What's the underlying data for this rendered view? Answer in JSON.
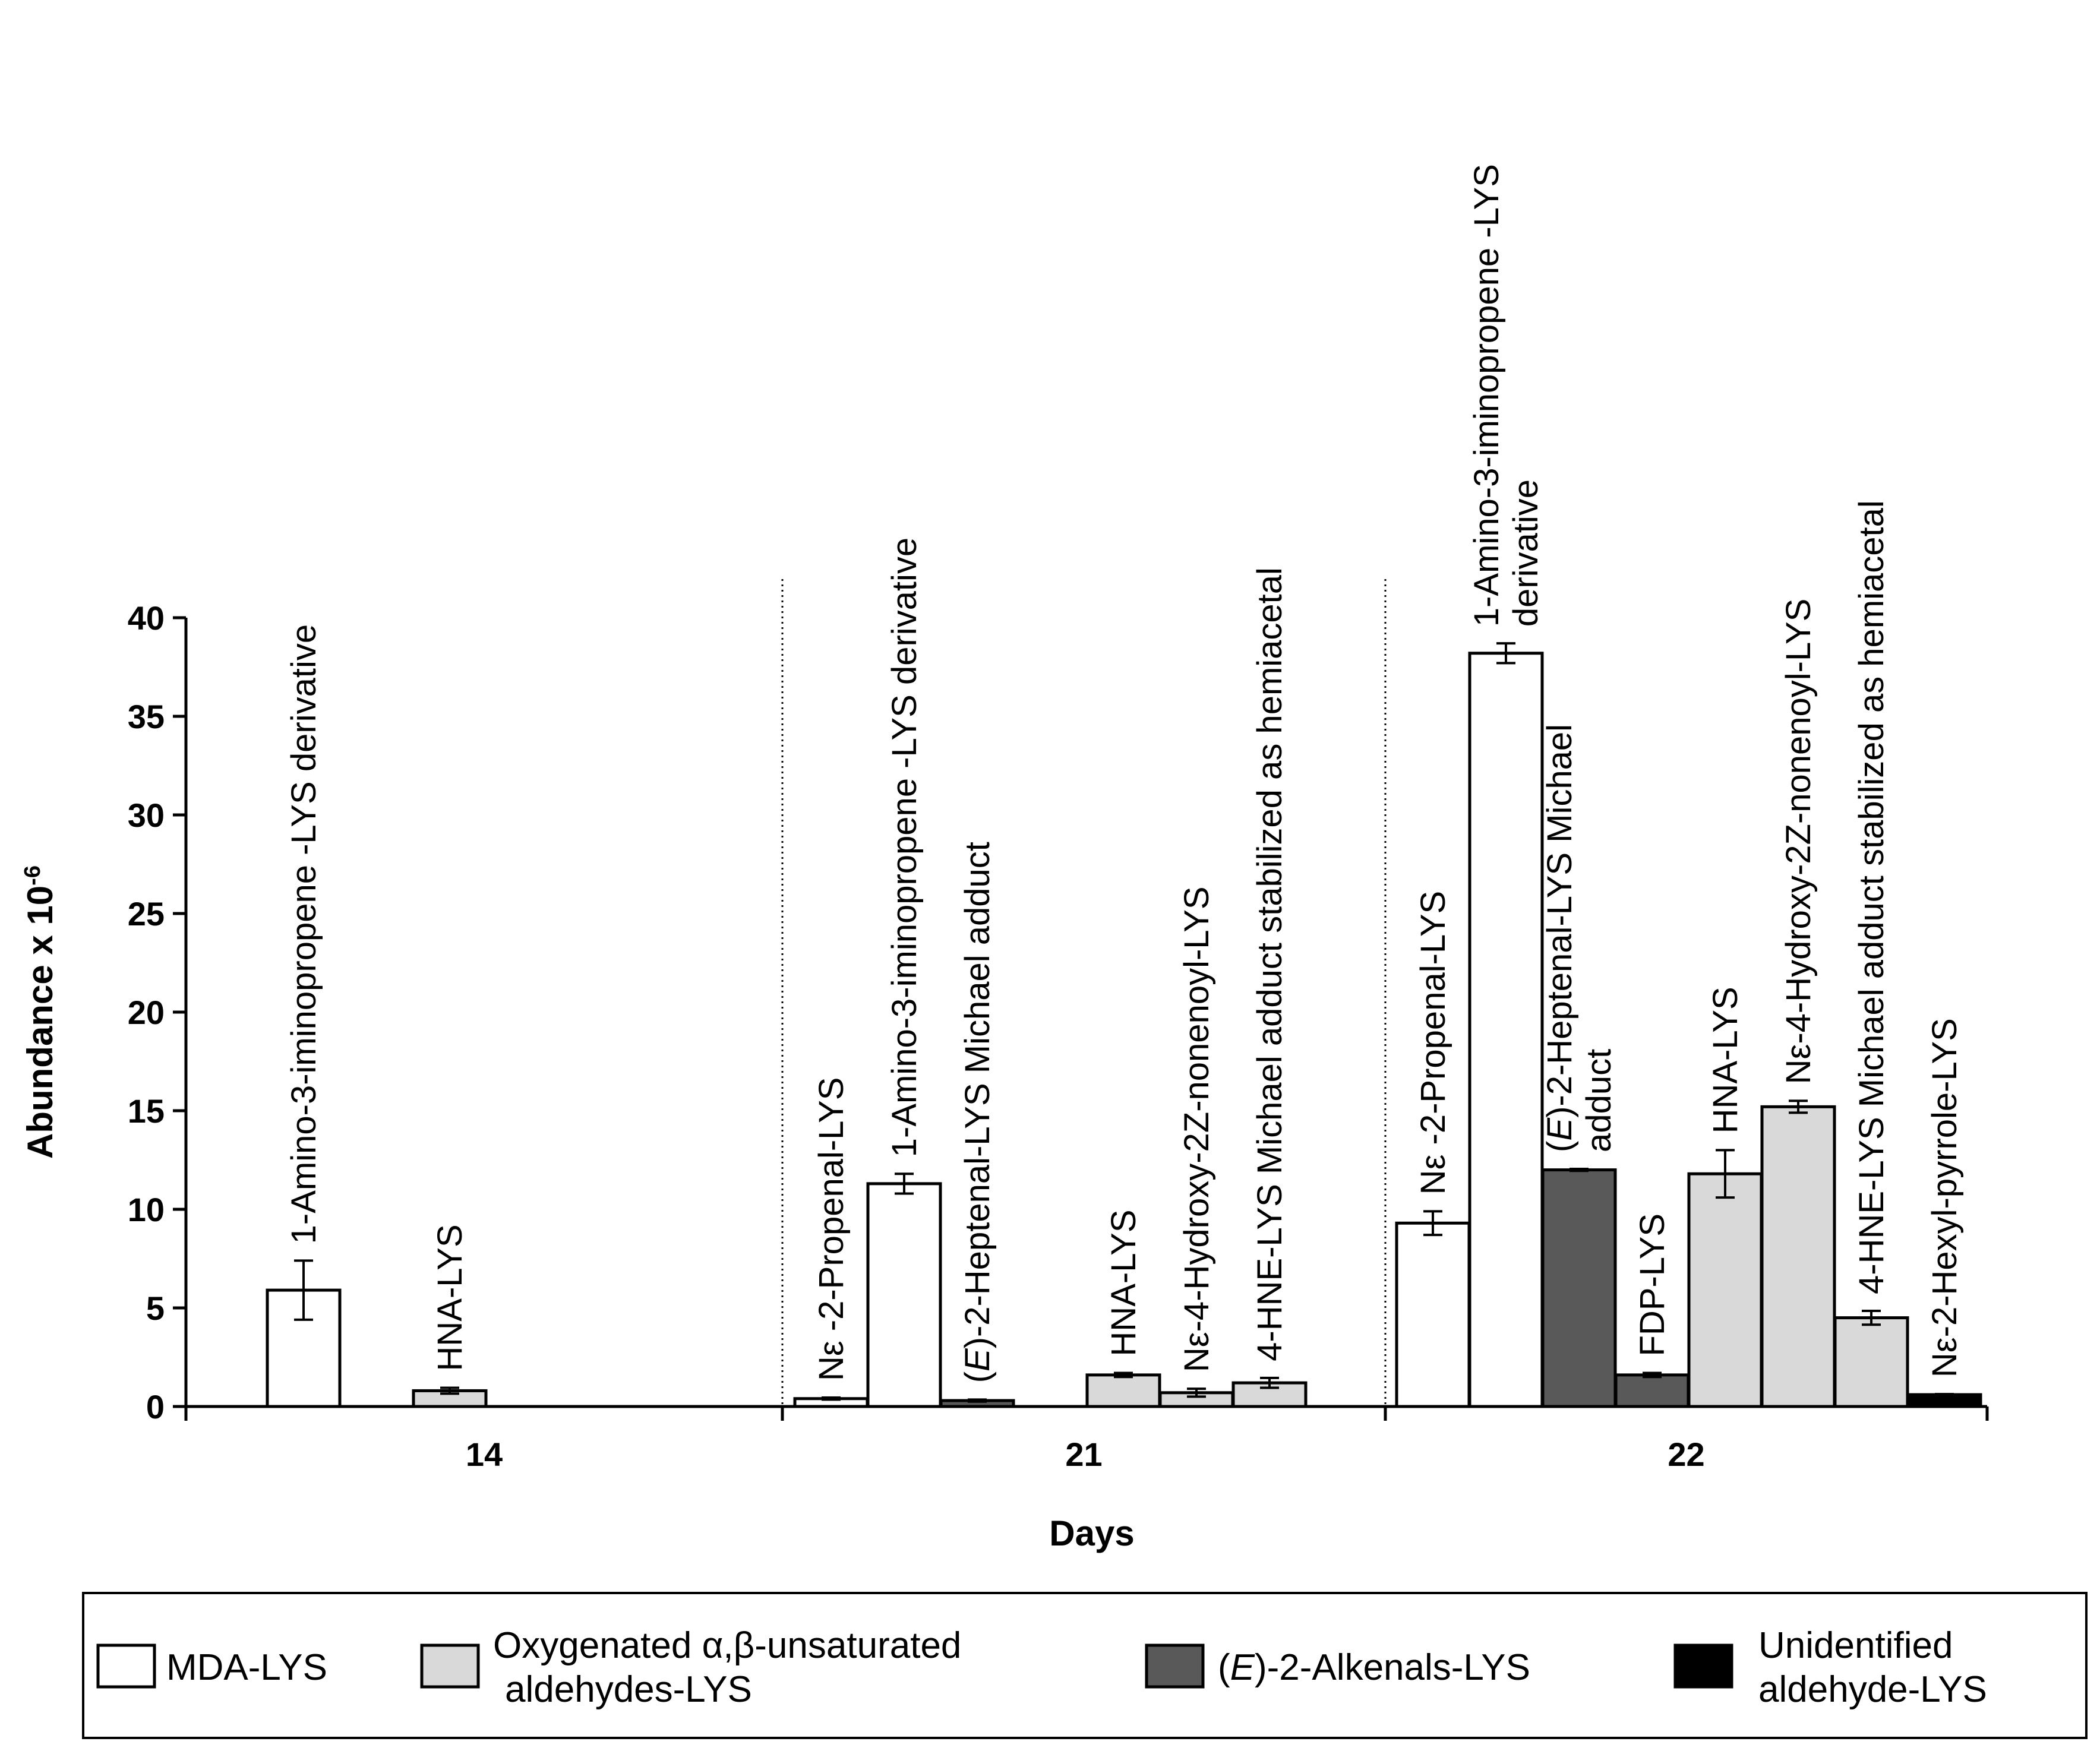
{
  "chart_data": {
    "type": "bar",
    "xlabel": "Days",
    "ylabel": "Abundance x 10",
    "ylabel_exponent": "-6",
    "ylim": [
      0,
      40
    ],
    "yticks": [
      "0",
      "5",
      "10",
      "15",
      "20",
      "25",
      "30",
      "35",
      "40"
    ],
    "grid": false,
    "groups": [
      {
        "day": "14",
        "bars": [
          {
            "label": "1-Amino-3-iminopropene -LYS derivative",
            "label_lines": [
              "1-Amino-3-iminopropene -LYS derivative"
            ],
            "series": "MDA-LYS",
            "value": 5.9,
            "error": 1.5
          },
          {
            "label": "",
            "label_lines": [],
            "series": "",
            "value": 0,
            "error": 0
          },
          {
            "label": "HNA-LYS",
            "label_lines": [
              "HNA-LYS"
            ],
            "series": "Oxygenated α,β-unsaturated aldehydes-LYS",
            "value": 0.8,
            "error": 0.15
          },
          {
            "label": "",
            "label_lines": [],
            "series": "",
            "value": 0,
            "error": 0
          }
        ]
      },
      {
        "day": "21",
        "bars": [
          {
            "label": "Nε -2-Propenal-LYS",
            "label_lines": [
              "Nε -2-Propenal-LYS"
            ],
            "series": "MDA-LYS",
            "value": 0.4,
            "error": 0.05
          },
          {
            "label": "1-Amino-3-iminopropene -LYS derivative",
            "label_lines": [
              "1-Amino-3-iminopropene -LYS derivative"
            ],
            "series": "MDA-LYS",
            "value": 11.3,
            "error": 0.5
          },
          {
            "label": "(E)-2-Heptenal-LYS Michael adduct",
            "label_lines": [
              "(E)-2-Heptenal-LYS Michael adduct"
            ],
            "series": "(E)-2-Alkenals-LYS",
            "value": 0.3,
            "error": 0.05
          },
          {
            "label": "",
            "label_lines": [],
            "series": "",
            "value": 0,
            "error": 0
          },
          {
            "label": "HNA-LYS",
            "label_lines": [
              "HNA-LYS"
            ],
            "series": "Oxygenated α,β-unsaturated aldehydes-LYS",
            "value": 1.6,
            "error": 0.1
          },
          {
            "label": "Nε-4-Hydroxy-2Z-nonenoyl-LYS",
            "label_lines": [
              "Nε-4-Hydroxy-2Z-nonenoyl-LYS"
            ],
            "series": "Oxygenated α,β-unsaturated aldehydes-LYS",
            "value": 0.7,
            "error": 0.2
          },
          {
            "label": "4-HNE-LYS Michael adduct stabilized as hemiacetal",
            "label_lines": [
              "4-HNE-LYS Michael adduct stabilized as hemiacetal"
            ],
            "series": "Oxygenated α,β-unsaturated aldehydes-LYS",
            "value": 1.2,
            "error": 0.25
          },
          {
            "label": "",
            "label_lines": [],
            "series": "",
            "value": 0,
            "error": 0
          }
        ]
      },
      {
        "day": "22",
        "bars": [
          {
            "label": "Nε -2-Propenal-LYS",
            "label_lines": [
              "Nε -2-Propenal-LYS"
            ],
            "series": "MDA-LYS",
            "value": 9.3,
            "error": 0.6
          },
          {
            "label": "1-Amino-3-iminopropene -LYS derivative",
            "label_lines": [
              "1-Amino-3-iminopropene -LYS",
              "derivative"
            ],
            "series": "MDA-LYS",
            "value": 38.2,
            "error": 0.5
          },
          {
            "label": "(E)-2-Heptenal-LYS Michael adduct",
            "label_lines": [
              "(E)-2-Heptenal-LYS Michael",
              "adduct"
            ],
            "series": "(E)-2-Alkenals-LYS",
            "value": 12.0,
            "error": 0.05
          },
          {
            "label": "FDP-LYS",
            "label_lines": [
              "FDP-LYS"
            ],
            "series": "(E)-2-Alkenals-LYS",
            "value": 1.6,
            "error": 0.1
          },
          {
            "label": "HNA-LYS",
            "label_lines": [
              "HNA-LYS"
            ],
            "series": "Oxygenated α,β-unsaturated aldehydes-LYS",
            "value": 11.8,
            "error": 1.2
          },
          {
            "label": "Nε-4-Hydroxy-2Z-nonenoyl-LYS",
            "label_lines": [
              "Nε-4-Hydroxy-2Z-nonenoyl-LYS"
            ],
            "series": "Oxygenated α,β-unsaturated aldehydes-LYS",
            "value": 15.2,
            "error": 0.3
          },
          {
            "label": "4-HNE-LYS Michael adduct stabilized as hemiacetal",
            "label_lines": [
              "4-HNE-LYS Michael adduct stabilized as hemiacetal"
            ],
            "series": "Oxygenated α,β-unsaturated aldehydes-LYS",
            "value": 4.5,
            "error": 0.35
          },
          {
            "label": "Nε-2-Hexyl-pyrrole-LYS",
            "label_lines": [
              "Nε-2-Hexyl-pyrrole-LYS"
            ],
            "series": "Unidentified aldehyde-LYS",
            "value": 0.6,
            "error": 0.03
          }
        ]
      }
    ],
    "legend": [
      {
        "name": "MDA-LYS",
        "lines": [
          "MDA-LYS"
        ],
        "color": "#ffffff"
      },
      {
        "name": "Oxygenated α,β-unsaturated aldehydes-LYS",
        "lines": [
          "Oxygenated α,β-unsaturated",
          "aldehydes-LYS"
        ],
        "color": "#d9d9d9"
      },
      {
        "name": "(E)-2-Alkenals-LYS",
        "lines": [
          "(E)-2-Alkenals-LYS"
        ],
        "color": "#595959"
      },
      {
        "name": "Unidentified aldehyde-LYS",
        "lines": [
          "Unidentified",
          "aldehyde-LYS"
        ],
        "color": "#000000"
      }
    ],
    "legend_position": "bottom"
  }
}
